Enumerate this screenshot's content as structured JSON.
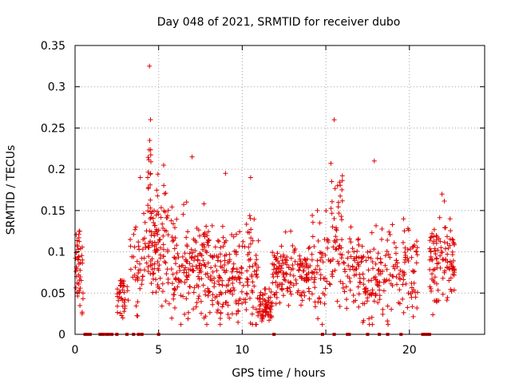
{
  "chart_data": {
    "type": "scatter",
    "title": "Day 048 of 2021, SRMTID for receiver dubo",
    "xlabel": "GPS time / hours",
    "ylabel": "SRMTID / TECUs",
    "xlim": [
      0,
      24.5
    ],
    "ylim": [
      0,
      0.35
    ],
    "xticks": [
      0,
      5,
      10,
      15,
      20
    ],
    "xtick_labels": [
      "0",
      "5",
      "10",
      "15",
      "20"
    ],
    "yticks": [
      0,
      0.05,
      0.1,
      0.15,
      0.2,
      0.25,
      0.3,
      0.35
    ],
    "ytick_labels": [
      "0",
      "0.05",
      "0.1",
      "0.15",
      "0.2",
      "0.25",
      "0.3",
      "0.35"
    ],
    "grid": true,
    "series": [
      {
        "name": "SRMTID",
        "color": "#e00000",
        "marker": "plus",
        "clusters": [
          {
            "x": [
              0.0,
              0.5
            ],
            "mean": 0.075,
            "spread": 0.025,
            "max": 0.125,
            "n": 45
          },
          {
            "x": [
              2.5,
              3.0
            ],
            "mean": 0.045,
            "spread": 0.012,
            "max": 0.065,
            "n": 35
          },
          {
            "x": [
              3.1,
              3.5
            ],
            "mean": 0.085,
            "spread": 0.02,
            "max": 0.115,
            "n": 8
          },
          {
            "x": [
              3.5,
              4.3
            ],
            "mean": 0.09,
            "spread": 0.03,
            "max": 0.19,
            "n": 40
          },
          {
            "x": [
              4.3,
              4.6
            ],
            "mean": 0.15,
            "spread": 0.05,
            "max": 0.325,
            "n": 40
          },
          {
            "x": [
              4.6,
              6.0
            ],
            "mean": 0.1,
            "spread": 0.035,
            "max": 0.205,
            "n": 110
          },
          {
            "x": [
              6.0,
              8.0
            ],
            "mean": 0.085,
            "spread": 0.03,
            "max": 0.215,
            "n": 140
          },
          {
            "x": [
              8.0,
              10.0
            ],
            "mean": 0.07,
            "spread": 0.028,
            "max": 0.195,
            "n": 130
          },
          {
            "x": [
              10.0,
              11.0
            ],
            "mean": 0.075,
            "spread": 0.03,
            "max": 0.19,
            "n": 60
          },
          {
            "x": [
              11.0,
              11.8
            ],
            "mean": 0.035,
            "spread": 0.01,
            "max": 0.055,
            "n": 60
          },
          {
            "x": [
              11.8,
              14.0
            ],
            "mean": 0.07,
            "spread": 0.02,
            "max": 0.125,
            "n": 140
          },
          {
            "x": [
              14.0,
              15.0
            ],
            "mean": 0.08,
            "spread": 0.03,
            "max": 0.15,
            "n": 50
          },
          {
            "x": [
              15.0,
              16.0
            ],
            "mean": 0.11,
            "spread": 0.04,
            "max": 0.26,
            "n": 60
          },
          {
            "x": [
              16.0,
              17.0
            ],
            "mean": 0.08,
            "spread": 0.025,
            "max": 0.13,
            "n": 50
          },
          {
            "x": [
              17.0,
              18.8
            ],
            "mean": 0.065,
            "spread": 0.025,
            "max": 0.21,
            "n": 100
          },
          {
            "x": [
              18.8,
              20.5
            ],
            "mean": 0.075,
            "spread": 0.025,
            "max": 0.14,
            "n": 80
          },
          {
            "x": [
              21.2,
              22.7
            ],
            "mean": 0.09,
            "spread": 0.025,
            "max": 0.17,
            "n": 110
          }
        ],
        "zero_markers": [
          0.6,
          0.7,
          0.8,
          0.9,
          1.5,
          1.6,
          1.7,
          1.9,
          2.0,
          2.2,
          2.5,
          3.1,
          3.5,
          3.8,
          4.0,
          5.0,
          11.9,
          14.8,
          15.5,
          16.3,
          16.4,
          17.5,
          18.2,
          18.7,
          19.5,
          20.8,
          20.9,
          21.0,
          21.1,
          21.2
        ]
      }
    ]
  }
}
